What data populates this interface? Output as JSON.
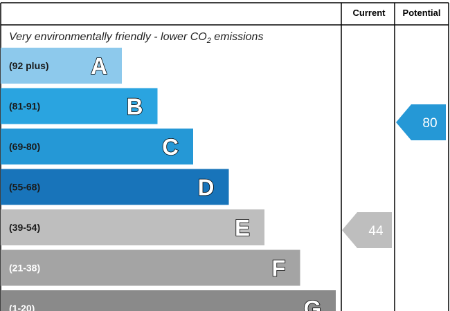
{
  "chart_data": {
    "type": "bar",
    "title_parts": [
      "Very environmentally friendly - lower CO",
      "2",
      " emissions"
    ],
    "columns": {
      "current": "Current",
      "potential": "Potential"
    },
    "bands": [
      {
        "letter": "A",
        "range": "(92 plus)",
        "color": "#8dc9ec",
        "text_color": "#1a1a1a"
      },
      {
        "letter": "B",
        "range": "(81-91)",
        "color": "#2aa4e0",
        "text_color": "#1a1a1a"
      },
      {
        "letter": "C",
        "range": "(69-80)",
        "color": "#2598d6",
        "text_color": "#1a1a1a"
      },
      {
        "letter": "D",
        "range": "(55-68)",
        "color": "#1874ba",
        "text_color": "#1a1a1a"
      },
      {
        "letter": "E",
        "range": "(39-54)",
        "color": "#bebebe",
        "text_color": "#1a1a1a"
      },
      {
        "letter": "F",
        "range": "(21-38)",
        "color": "#a4a4a4",
        "text_color": "#ffffff"
      },
      {
        "letter": "G",
        "range": "(1-20)",
        "color": "#8a8a8a",
        "text_color": "#ffffff"
      }
    ],
    "current": {
      "value": 44,
      "band": "E",
      "color": "#bebebe"
    },
    "potential": {
      "value": 80,
      "band": "C",
      "color": "#2598d6"
    }
  }
}
